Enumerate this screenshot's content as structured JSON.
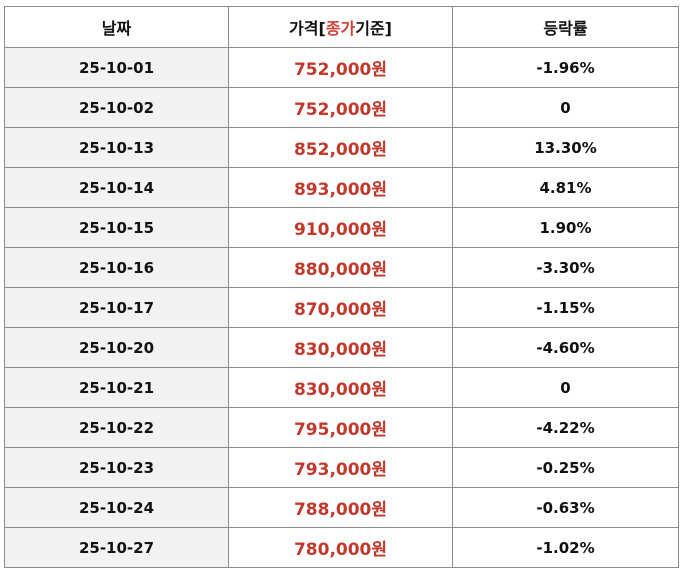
{
  "table": {
    "header": [
      "날짜",
      [
        "가격[",
        "종가",
        "기준]"
      ],
      "등락률"
    ],
    "rows": [
      [
        "25-10-01",
        "752,000원",
        "-1.96%"
      ],
      [
        "25-10-02",
        "752,000원",
        "0"
      ],
      [
        "25-10-13",
        "852,000원",
        "13.30%"
      ],
      [
        "25-10-14",
        "893,000원",
        "4.81%"
      ],
      [
        "25-10-15",
        "910,000원",
        "1.90%"
      ],
      [
        "25-10-16",
        "880,000원",
        "-3.30%"
      ],
      [
        "25-10-17",
        "870,000원",
        "-1.15%"
      ],
      [
        "25-10-20",
        "830,000원",
        "-4.60%"
      ],
      [
        "25-10-21",
        "830,000원",
        "0"
      ],
      [
        "25-10-22",
        "795,000원",
        "-4.22%"
      ],
      [
        "25-10-23",
        "793,000원",
        "-0.25%"
      ],
      [
        "25-10-24",
        "788,000원",
        "-0.63%"
      ],
      [
        "25-10-27",
        "780,000원",
        "-1.02%"
      ]
    ]
  }
}
